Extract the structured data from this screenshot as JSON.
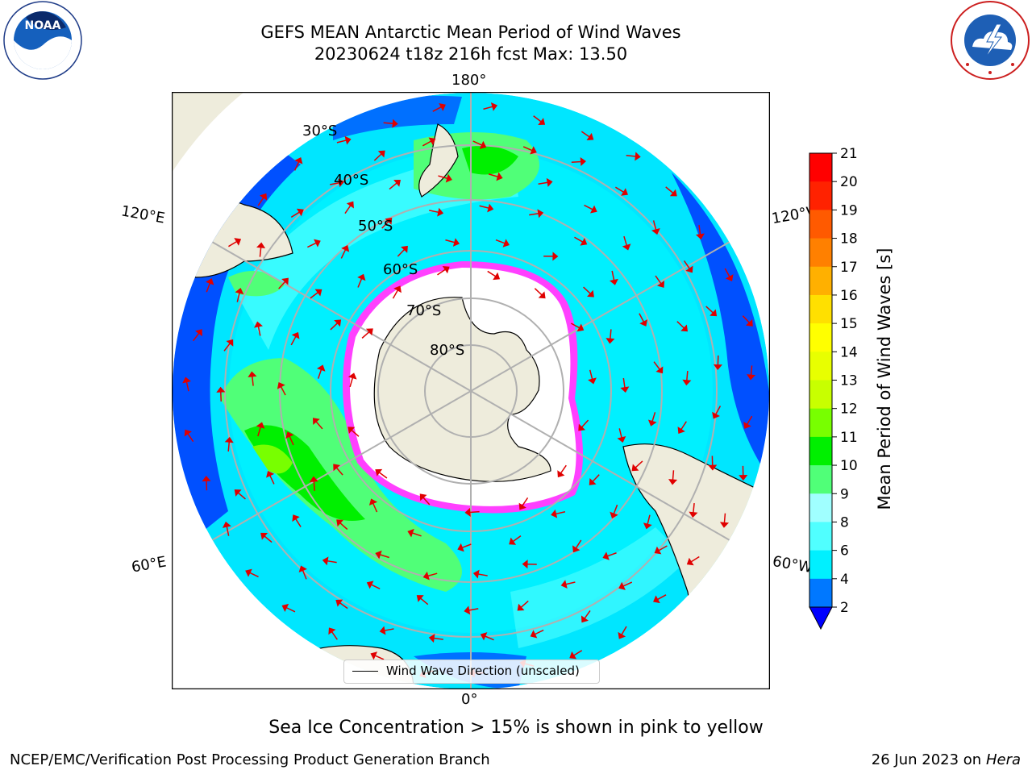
{
  "header": {
    "title_line1": "GEFS MEAN Antarctic Mean Period of Wind Waves",
    "title_line2": "20230624 t18z 216h fcst   Max: 13.50"
  },
  "map": {
    "projection": "south-polar-stereographic",
    "lon_labels": {
      "top": "180°",
      "bottom": "0°",
      "upper_left": "120°E",
      "upper_right": "120°W",
      "lower_left": "60°E",
      "lower_right": "60°W"
    },
    "lat_labels": [
      "30°S",
      "40°S",
      "50°S",
      "60°S",
      "70°S",
      "80°S"
    ],
    "legend_label": "Wind Wave Direction (unscaled)"
  },
  "colorbar": {
    "label": "Mean Period of Wind Waves [s]",
    "ticks": [
      "21",
      "20",
      "19",
      "18",
      "17",
      "16",
      "15",
      "14",
      "13",
      "12",
      "11",
      "10",
      "9",
      "8",
      "6",
      "4",
      "2"
    ],
    "colors": [
      "#ff0000",
      "#ff2200",
      "#ff5a00",
      "#ff8000",
      "#ffb000",
      "#ffe000",
      "#ffff00",
      "#e8ff00",
      "#c8ff00",
      "#78ff00",
      "#00f000",
      "#50ff78",
      "#a0ffff",
      "#50ffff",
      "#00f0ff",
      "#0078ff"
    ],
    "under_color": "#0000ff"
  },
  "caption": "Sea Ice Concentration > 15% is shown in pink to yellow",
  "footer": {
    "left": "NCEP/EMC/Verification Post Processing Product Generation Branch",
    "right_date": "26 Jun 2023 on",
    "right_host": "Hera"
  },
  "logos": {
    "noaa_text": "NOAA",
    "nws_text": "NATIONAL WEATHER SERVICE"
  }
}
